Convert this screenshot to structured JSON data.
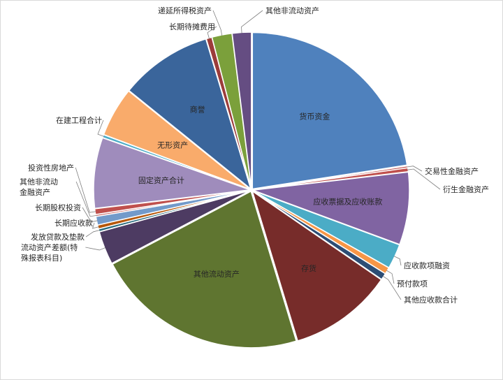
{
  "chart_data": {
    "type": "pie",
    "title": "",
    "start_angle_deg": 0,
    "slices": [
      {
        "label": "货币资金",
        "value": 22.9,
        "color": "#4f81bd",
        "label_mode": "inside"
      },
      {
        "label": "交易性金融资产",
        "value": 0.2,
        "color": "#c0504d",
        "label_mode": "outside"
      },
      {
        "label": "衍生金融资产",
        "value": 0.4,
        "color": "#c0504d",
        "label_mode": "outside"
      },
      {
        "label": "应收票据及应收账款",
        "value": 7.6,
        "color": "#8064a2",
        "label_mode": "inside"
      },
      {
        "label": "应收款项融资",
        "value": 2.6,
        "color": "#4bacc6",
        "label_mode": "outside"
      },
      {
        "label": "预付款项",
        "value": 0.7,
        "color": "#f79646",
        "label_mode": "outside"
      },
      {
        "label": "其他应收款合计",
        "value": 0.7,
        "color": "#2c4d75",
        "label_mode": "outside"
      },
      {
        "label": "存货",
        "value": 10.9,
        "color": "#772c2a",
        "label_mode": "inside"
      },
      {
        "label": "其他流动资产",
        "value": 22.3,
        "color": "#5f7530",
        "label_mode": "inside"
      },
      {
        "label": "流动资产差额(特殊报表科目)",
        "value": 3.5,
        "color": "#4d3b62",
        "label_mode": "outside"
      },
      {
        "label": "发放贷款及垫款",
        "value": 0.3,
        "color": "#276a7c",
        "label_mode": "outside"
      },
      {
        "label": "长期应收款",
        "value": 0.4,
        "color": "#b65708",
        "label_mode": "outside"
      },
      {
        "label": "长期股权投资",
        "value": 0.9,
        "color": "#729aca",
        "label_mode": "outside"
      },
      {
        "label": "其他非流动金融资产",
        "value": 0.2,
        "color": "#cd7371",
        "label_mode": "outside"
      },
      {
        "label": "投资性房地产",
        "value": 0.6,
        "color": "#c0504d",
        "label_mode": "outside"
      },
      {
        "label": "固定资产合计",
        "value": 7.4,
        "color": "#9f8cbc",
        "label_mode": "inside"
      },
      {
        "label": "在建工程合计",
        "value": 0.3,
        "color": "#4bacc6",
        "label_mode": "outside"
      },
      {
        "label": "无形资产",
        "value": 5.2,
        "color": "#f9ab6b",
        "label_mode": "inside"
      },
      {
        "label": "商誉",
        "value": 9.7,
        "color": "#3a659b",
        "label_mode": "inside"
      },
      {
        "label": "长期待摊费用",
        "value": 0.6,
        "color": "#9c3c3a",
        "label_mode": "outside"
      },
      {
        "label": "递延所得税资产",
        "value": 2.1,
        "color": "#7ba03b",
        "label_mode": "outside"
      },
      {
        "label": "其他非流动资产",
        "value": 2.0,
        "color": "#654d82",
        "label_mode": "outside"
      }
    ]
  }
}
